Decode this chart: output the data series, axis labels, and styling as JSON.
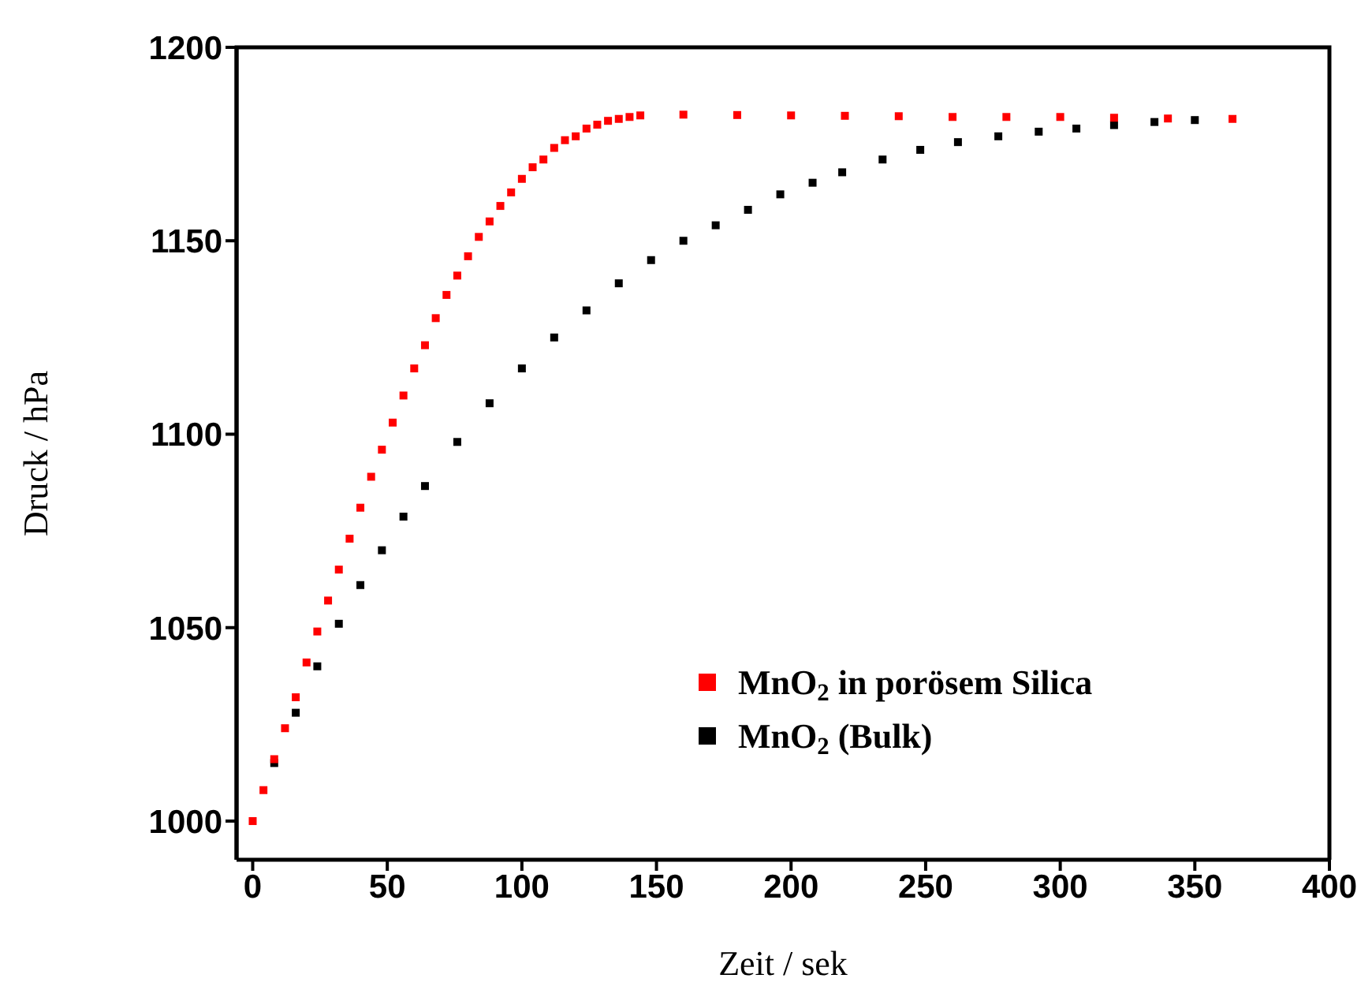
{
  "chart_data": {
    "type": "scatter",
    "xlabel": "Zeit / sek",
    "ylabel": "Druck / hPa",
    "xlim": [
      -6,
      400
    ],
    "xticks": [
      0,
      50,
      100,
      150,
      200,
      250,
      300,
      350,
      400
    ],
    "ylim": [
      990,
      1200
    ],
    "yticks": [
      1000,
      1050,
      1100,
      1150,
      1200
    ],
    "grid": false,
    "legend": "bottom right",
    "marker": "square",
    "series": [
      {
        "name": "MnO$_{2}$  in porösem Silica",
        "color": "#ff0000",
        "x": [
          0,
          4,
          8,
          12,
          16,
          20,
          24,
          28,
          32,
          36,
          40,
          44,
          48,
          52,
          56,
          60,
          64,
          68,
          72,
          76,
          80,
          84,
          88,
          92,
          96,
          100,
          104,
          108,
          112,
          116,
          120,
          124,
          128,
          132,
          136,
          140,
          144,
          160,
          180,
          200,
          220,
          240,
          260,
          280,
          300,
          320,
          340,
          364
        ],
        "values": [
          1000,
          1008,
          1016,
          1024,
          1032,
          1041,
          1049,
          1057,
          1065,
          1073,
          1081,
          1089,
          1096,
          1103,
          1110,
          1117,
          1123,
          1130,
          1136,
          1141,
          1146,
          1151,
          1155,
          1159,
          1162.5,
          1166,
          1169,
          1171,
          1174,
          1176,
          1177,
          1179,
          1180,
          1181,
          1181.5,
          1182,
          1182.4,
          1182.6,
          1182.5,
          1182.4,
          1182.3,
          1182.2,
          1182,
          1182,
          1182,
          1181.8,
          1181.6,
          1181.5
        ]
      },
      {
        "name": "MnO$_{2}$  (Bulk)",
        "color": "#000000",
        "x": [
          8,
          16,
          24,
          32,
          40,
          48,
          56,
          64,
          76,
          88,
          100,
          112,
          124,
          136,
          148,
          160,
          172,
          184,
          196,
          208,
          219,
          234,
          248,
          262,
          277,
          292,
          306,
          320,
          335,
          350
        ],
        "values": [
          1015,
          1028,
          1040,
          1051,
          1061,
          1070,
          1078.7,
          1086.6,
          1098,
          1108,
          1117,
          1125,
          1132,
          1139,
          1145,
          1150,
          1154,
          1158,
          1162,
          1165,
          1167.7,
          1171,
          1173.5,
          1175.5,
          1177,
          1178.2,
          1179,
          1179.9,
          1180.7,
          1181.2
        ]
      }
    ]
  }
}
